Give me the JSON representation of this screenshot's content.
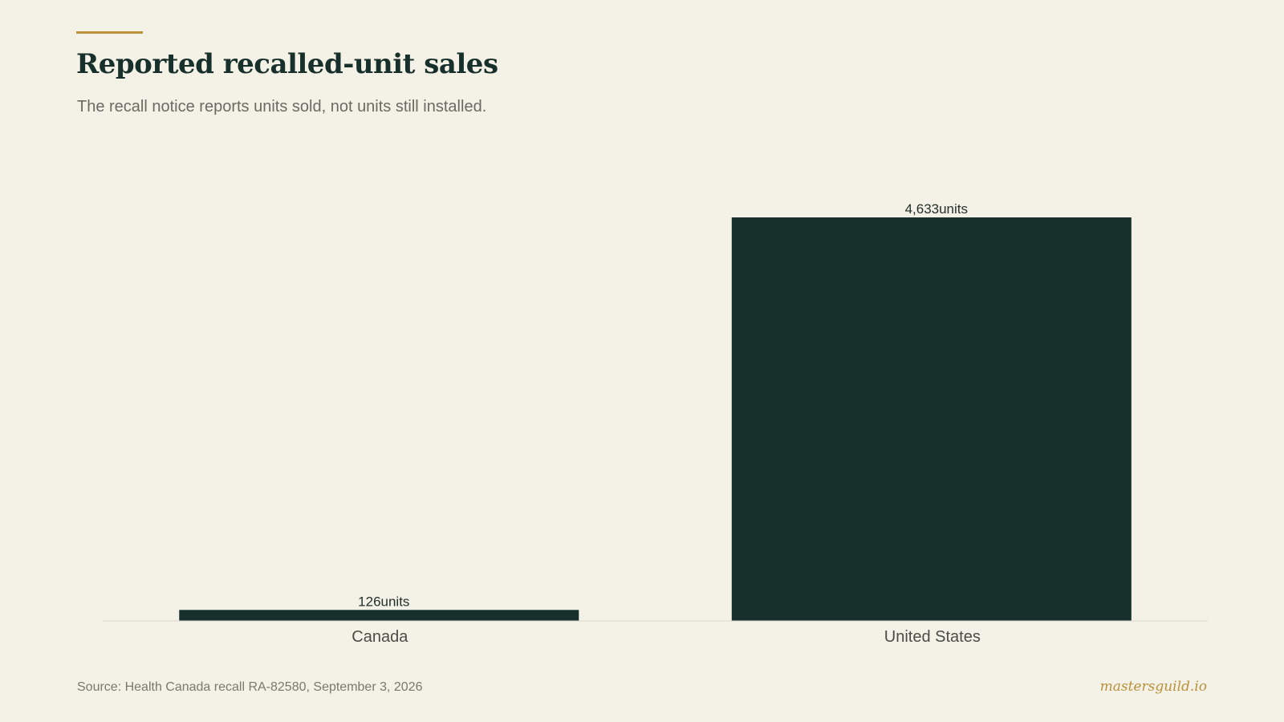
{
  "header": {
    "title": "Reported recalled-unit sales",
    "subtitle": "The recall notice reports units sold, not units still installed."
  },
  "footer": {
    "source": "Source: Health Canada recall RA-82580, September 3, 2026",
    "brand": "mastersguild.io"
  },
  "colors": {
    "bar": "#17302b",
    "accent": "#b8913a",
    "background": "#f4f1e6",
    "baseline": "#d8d5cb"
  },
  "chart_data": {
    "type": "bar",
    "title": "Reported recalled-unit sales",
    "subtitle": "The recall notice reports units sold, not units still installed.",
    "categories": [
      "Canada",
      "United States"
    ],
    "values": [
      126,
      4633
    ],
    "value_labels": [
      "126units",
      "4,633units"
    ],
    "xlabel": "",
    "ylabel": "",
    "ylim": [
      0,
      4633
    ],
    "grid": false,
    "legend": "none"
  }
}
